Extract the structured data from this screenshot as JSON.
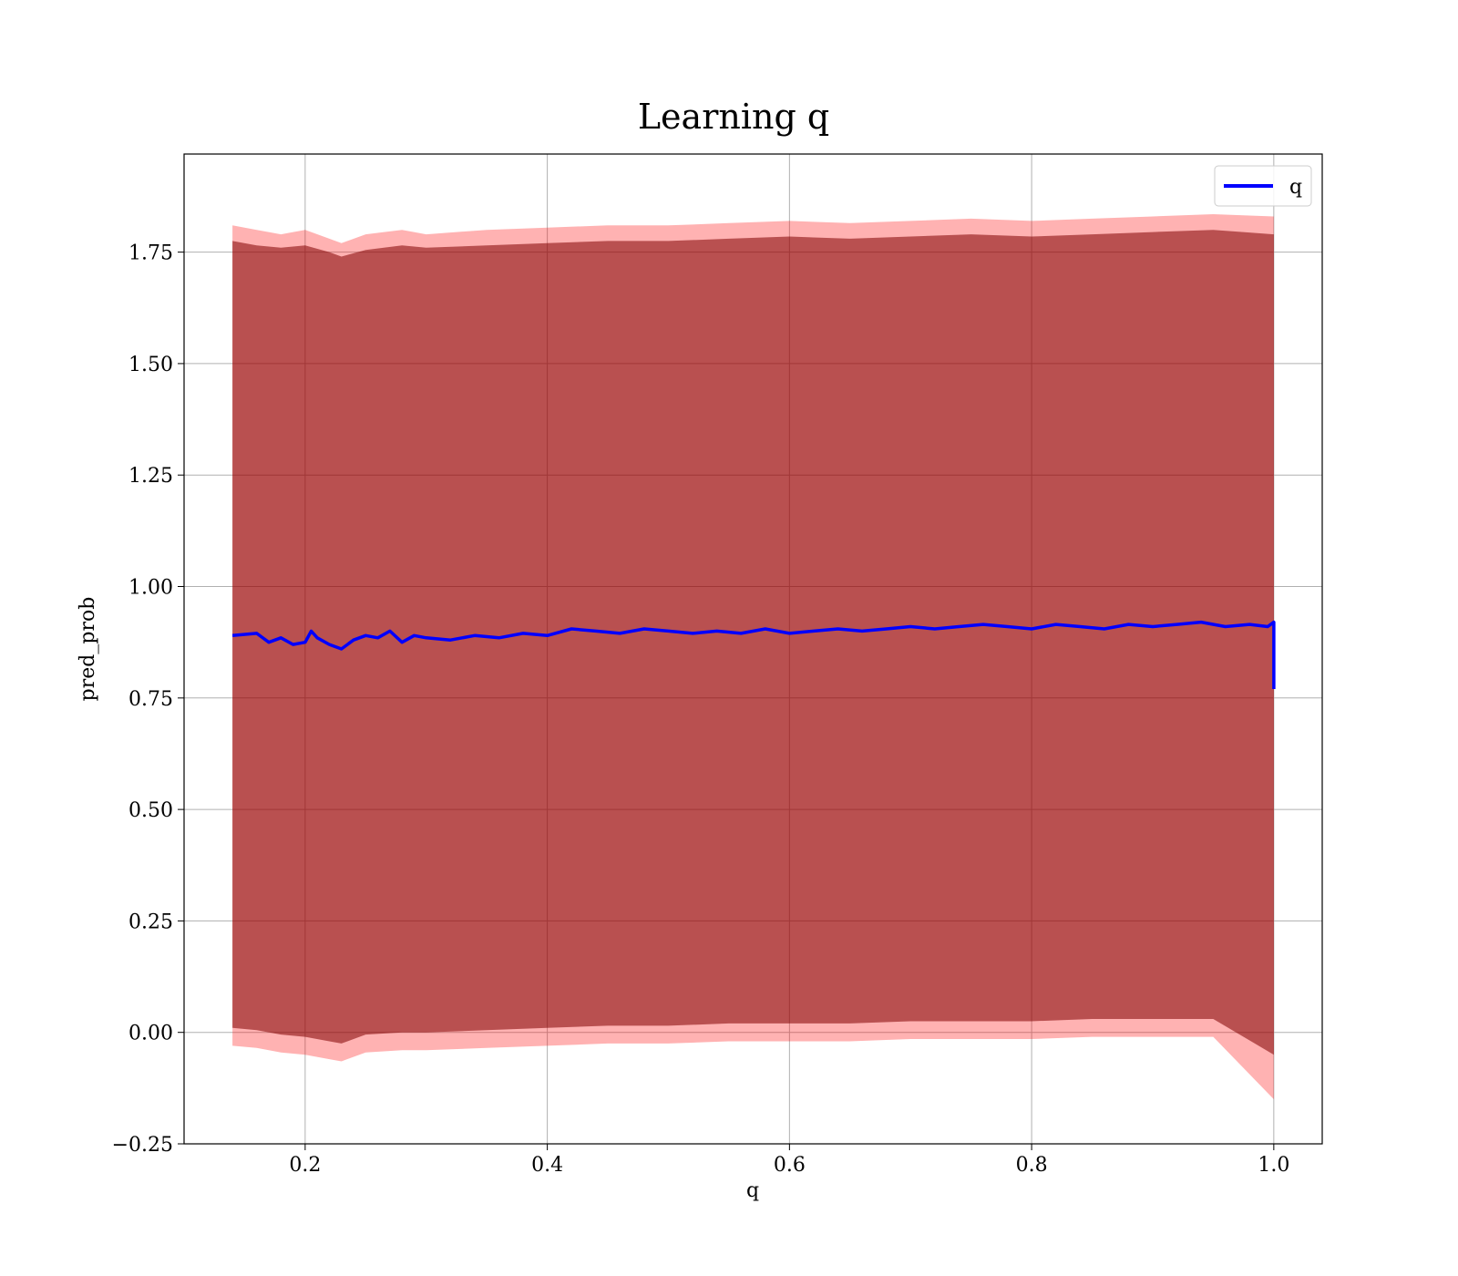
{
  "chart_data": {
    "type": "line",
    "title": "Learning q",
    "xlabel": "q",
    "ylabel": "pred_prob",
    "xlim": [
      0.1,
      1.04
    ],
    "ylim": [
      -0.25,
      1.97
    ],
    "grid": true,
    "legend_position": "top-right",
    "x_ticks": [
      {
        "value": 0.2,
        "label": "0.2"
      },
      {
        "value": 0.4,
        "label": "0.4"
      },
      {
        "value": 0.6,
        "label": "0.6"
      },
      {
        "value": 0.8,
        "label": "0.8"
      },
      {
        "value": 1.0,
        "label": "1.0"
      }
    ],
    "y_ticks": [
      {
        "value": -0.25,
        "label": "−0.25"
      },
      {
        "value": 0.0,
        "label": "0.00"
      },
      {
        "value": 0.25,
        "label": "0.25"
      },
      {
        "value": 0.5,
        "label": "0.50"
      },
      {
        "value": 0.75,
        "label": "0.75"
      },
      {
        "value": 1.0,
        "label": "1.00"
      },
      {
        "value": 1.25,
        "label": "1.25"
      },
      {
        "value": 1.5,
        "label": "1.50"
      },
      {
        "value": 1.75,
        "label": "1.75"
      }
    ],
    "series": [
      {
        "name": "q",
        "color": "#0000ff",
        "x": [
          0.14,
          0.16,
          0.17,
          0.18,
          0.19,
          0.2,
          0.205,
          0.21,
          0.22,
          0.23,
          0.24,
          0.25,
          0.26,
          0.27,
          0.28,
          0.29,
          0.3,
          0.32,
          0.34,
          0.36,
          0.38,
          0.4,
          0.42,
          0.44,
          0.46,
          0.48,
          0.5,
          0.52,
          0.54,
          0.56,
          0.58,
          0.6,
          0.62,
          0.64,
          0.66,
          0.68,
          0.7,
          0.72,
          0.74,
          0.76,
          0.78,
          0.8,
          0.82,
          0.84,
          0.86,
          0.88,
          0.9,
          0.92,
          0.94,
          0.96,
          0.98,
          0.995,
          1.0,
          1.0
        ],
        "y": [
          0.89,
          0.895,
          0.875,
          0.885,
          0.87,
          0.875,
          0.9,
          0.885,
          0.87,
          0.86,
          0.88,
          0.89,
          0.885,
          0.9,
          0.875,
          0.89,
          0.885,
          0.88,
          0.89,
          0.885,
          0.895,
          0.89,
          0.905,
          0.9,
          0.895,
          0.905,
          0.9,
          0.895,
          0.9,
          0.895,
          0.905,
          0.895,
          0.9,
          0.905,
          0.9,
          0.905,
          0.91,
          0.905,
          0.91,
          0.915,
          0.91,
          0.905,
          0.915,
          0.91,
          0.905,
          0.915,
          0.91,
          0.915,
          0.92,
          0.91,
          0.915,
          0.91,
          0.92,
          0.77
        ]
      }
    ],
    "bands": [
      {
        "color": "#ff0000",
        "opacity": 0.3,
        "x": [
          0.14,
          0.16,
          0.18,
          0.2,
          0.22,
          0.23,
          0.25,
          0.28,
          0.3,
          0.35,
          0.4,
          0.45,
          0.5,
          0.55,
          0.6,
          0.65,
          0.7,
          0.75,
          0.8,
          0.85,
          0.9,
          0.95,
          1.0
        ],
        "upper": [
          1.81,
          1.8,
          1.79,
          1.8,
          1.78,
          1.77,
          1.79,
          1.8,
          1.79,
          1.8,
          1.805,
          1.81,
          1.81,
          1.815,
          1.82,
          1.815,
          1.82,
          1.825,
          1.82,
          1.825,
          1.83,
          1.835,
          1.83
        ],
        "lower": [
          -0.03,
          -0.035,
          -0.045,
          -0.05,
          -0.06,
          -0.065,
          -0.045,
          -0.04,
          -0.04,
          -0.035,
          -0.03,
          -0.025,
          -0.025,
          -0.02,
          -0.02,
          -0.02,
          -0.015,
          -0.015,
          -0.015,
          -0.01,
          -0.01,
          -0.01,
          -0.15
        ]
      },
      {
        "color": "#800000",
        "opacity": 0.55,
        "x": [
          0.14,
          0.16,
          0.18,
          0.2,
          0.22,
          0.23,
          0.25,
          0.28,
          0.3,
          0.35,
          0.4,
          0.45,
          0.5,
          0.55,
          0.6,
          0.65,
          0.7,
          0.75,
          0.8,
          0.85,
          0.9,
          0.95,
          1.0
        ],
        "upper": [
          1.775,
          1.765,
          1.76,
          1.765,
          1.75,
          1.74,
          1.755,
          1.765,
          1.76,
          1.765,
          1.77,
          1.775,
          1.775,
          1.78,
          1.785,
          1.78,
          1.785,
          1.79,
          1.785,
          1.79,
          1.795,
          1.8,
          1.79
        ],
        "lower": [
          0.01,
          0.005,
          -0.005,
          -0.01,
          -0.02,
          -0.025,
          -0.005,
          0.0,
          0.0,
          0.005,
          0.01,
          0.015,
          0.015,
          0.02,
          0.02,
          0.02,
          0.025,
          0.025,
          0.025,
          0.03,
          0.03,
          0.03,
          -0.05
        ]
      }
    ]
  }
}
